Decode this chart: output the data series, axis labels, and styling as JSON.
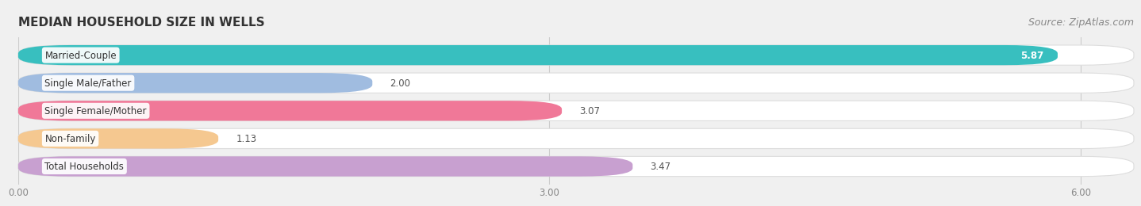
{
  "title": "MEDIAN HOUSEHOLD SIZE IN WELLS",
  "source": "Source: ZipAtlas.com",
  "categories": [
    "Married-Couple",
    "Single Male/Father",
    "Single Female/Mother",
    "Non-family",
    "Total Households"
  ],
  "values": [
    5.87,
    2.0,
    3.07,
    1.13,
    3.47
  ],
  "bar_colors": [
    "#38bfbf",
    "#a0bce0",
    "#f07898",
    "#f5c890",
    "#c8a0d0"
  ],
  "xlim": [
    0,
    6.3
  ],
  "xticks": [
    0.0,
    3.0,
    6.0
  ],
  "xtick_labels": [
    "0.00",
    "3.00",
    "6.00"
  ],
  "background_color": "#f0f0f0",
  "bar_bg_color": "#ffffff",
  "title_fontsize": 11,
  "source_fontsize": 9,
  "label_fontsize": 8.5,
  "value_fontsize": 8.5,
  "bar_height": 0.72,
  "bar_bg_rounding": 0.3,
  "bar_rounding": 0.3
}
